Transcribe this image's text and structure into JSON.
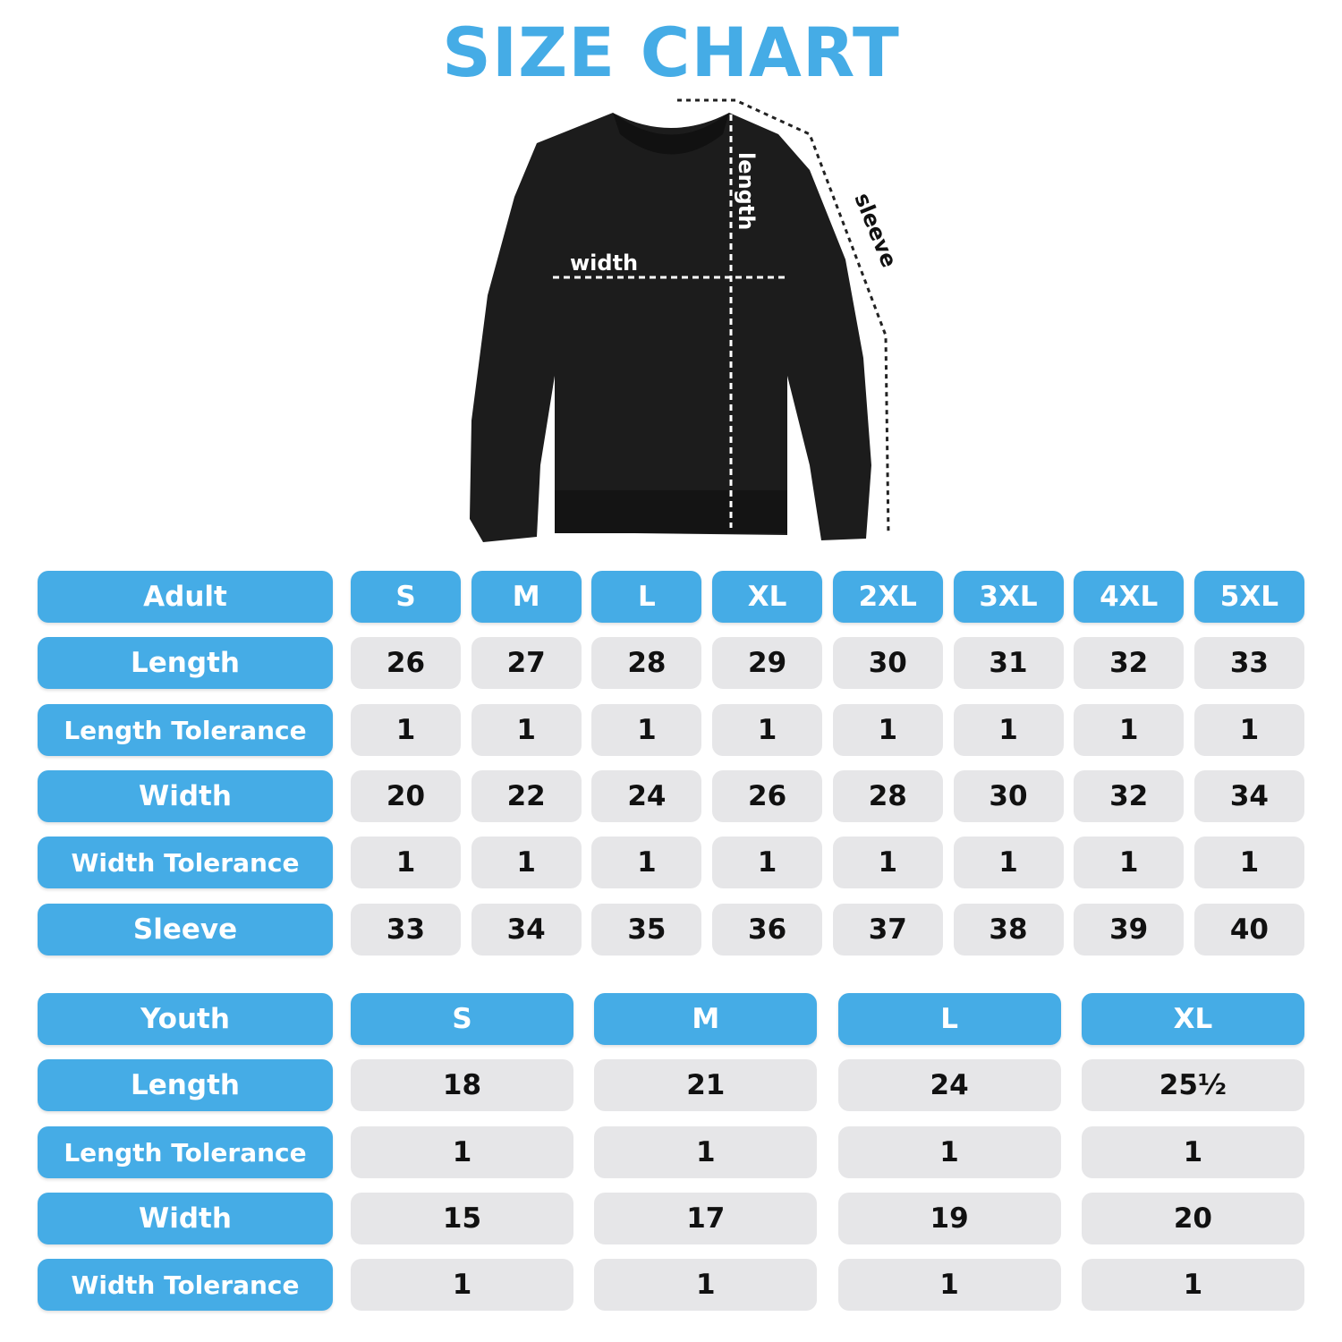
{
  "title": "SIZE CHART",
  "diagram": {
    "width_label": "width",
    "length_label": "length",
    "sleeve_label": "sleeve"
  },
  "colors": {
    "accent": "#45ace6",
    "cell": "#e6e6e8",
    "garment": "#1c1c1c"
  },
  "adult": {
    "header": "Adult",
    "sizes": [
      "S",
      "M",
      "L",
      "XL",
      "2XL",
      "3XL",
      "4XL",
      "5XL"
    ],
    "rows": [
      {
        "label": "Length",
        "values": [
          "26",
          "27",
          "28",
          "29",
          "30",
          "31",
          "32",
          "33"
        ]
      },
      {
        "label": "Length Tolerance",
        "values": [
          "1",
          "1",
          "1",
          "1",
          "1",
          "1",
          "1",
          "1"
        ]
      },
      {
        "label": "Width",
        "values": [
          "20",
          "22",
          "24",
          "26",
          "28",
          "30",
          "32",
          "34"
        ]
      },
      {
        "label": "Width Tolerance",
        "values": [
          "1",
          "1",
          "1",
          "1",
          "1",
          "1",
          "1",
          "1"
        ]
      },
      {
        "label": "Sleeve",
        "values": [
          "33",
          "34",
          "35",
          "36",
          "37",
          "38",
          "39",
          "40"
        ]
      }
    ]
  },
  "youth": {
    "header": "Youth",
    "sizes": [
      "S",
      "M",
      "L",
      "XL"
    ],
    "rows": [
      {
        "label": "Length",
        "values": [
          "18",
          "21",
          "24",
          "25½"
        ]
      },
      {
        "label": "Length Tolerance",
        "values": [
          "1",
          "1",
          "1",
          "1"
        ]
      },
      {
        "label": "Width",
        "values": [
          "15",
          "17",
          "19",
          "20"
        ]
      },
      {
        "label": "Width Tolerance",
        "values": [
          "1",
          "1",
          "1",
          "1"
        ]
      }
    ]
  }
}
